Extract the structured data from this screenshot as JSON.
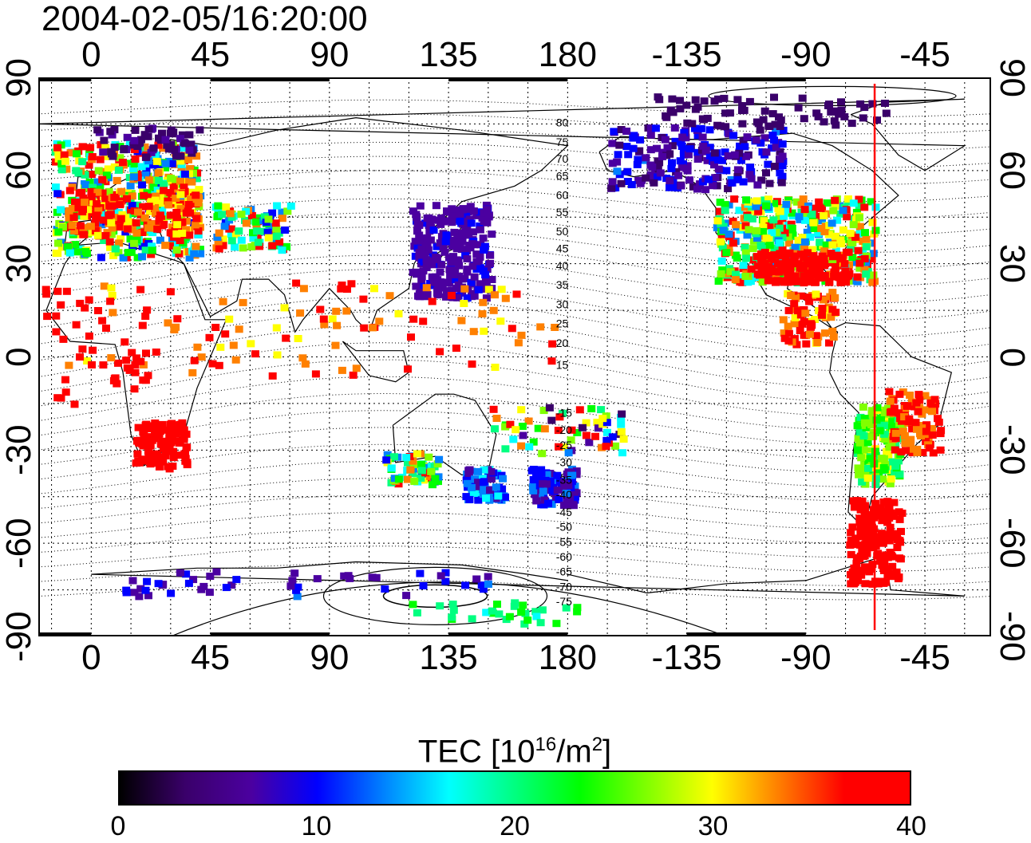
{
  "timestamp": "2004-02-05/16:20:00",
  "map": {
    "x_ticks": [
      "0",
      "45",
      "90",
      "135",
      "180",
      "-135",
      "-90",
      "-45"
    ],
    "y_ticks": [
      "90",
      "60",
      "30",
      "0",
      "-30",
      "-60",
      "-90"
    ],
    "lon_range": [
      -20,
      340
    ],
    "lat_range": [
      -90,
      90
    ],
    "projection": "equirectangular",
    "grid": true,
    "contour_labels": [
      "80",
      "75",
      "70",
      "65",
      "60",
      "55",
      "50",
      "45",
      "40",
      "35",
      "30",
      "25",
      "20",
      "15",
      "-15",
      "-20",
      "-25",
      "-30",
      "-35",
      "-40",
      "-45",
      "-50",
      "-55",
      "-60",
      "-65",
      "-70",
      "-75"
    ],
    "marker_longitude": -64,
    "marker_color": "#ff0000"
  },
  "colorbar": {
    "title_prefix": "TEC  [10",
    "title_exp1": "16",
    "title_mid": "/m",
    "title_exp2": "2",
    "title_suffix": "]",
    "ticks": [
      "0",
      "10",
      "20",
      "30",
      "40"
    ],
    "min": 0,
    "max": 40,
    "colors": [
      "#000000",
      "#3a006a",
      "#4b00a0",
      "#0000ff",
      "#0080ff",
      "#00ffff",
      "#00ff80",
      "#00ff00",
      "#80ff00",
      "#ffff00",
      "#ff8000",
      "#ff0000",
      "#ff0000"
    ]
  },
  "chart_data": {
    "type": "heatmap",
    "title": "2004-02-05/16:20:00",
    "xlabel": "",
    "ylabel": "",
    "x_ticks": [
      0,
      45,
      90,
      135,
      180,
      -135,
      -90,
      -45
    ],
    "y_ticks": [
      90,
      60,
      30,
      0,
      -30,
      -60,
      -90
    ],
    "value_range": [
      0,
      40
    ],
    "colorbar_label": "TEC [10^16/m^2]",
    "regions": [
      {
        "lon": [
          -15,
          40
        ],
        "lat": [
          30,
          75
        ],
        "tec": "high"
      },
      {
        "lon": [
          120,
          150
        ],
        "lat": [
          20,
          50
        ],
        "tec": 7
      },
      {
        "lon": [
          -125,
          -65
        ],
        "lat": [
          25,
          50
        ],
        "tec": "high"
      },
      {
        "lon": [
          -160,
          -100
        ],
        "lat": [
          55,
          75
        ],
        "tec": 5
      },
      {
        "lon": [
          15,
          35
        ],
        "lat": [
          -35,
          -20
        ],
        "tec": 40
      },
      {
        "lon": [
          -70,
          -50
        ],
        "lat": [
          -40,
          -15
        ],
        "tec": 25
      },
      {
        "lon": [
          -75,
          -55
        ],
        "lat": [
          -75,
          -45
        ],
        "tec": 40
      },
      {
        "lon": [
          165,
          180
        ],
        "lat": [
          -47,
          -35
        ],
        "tec": 10
      }
    ]
  }
}
